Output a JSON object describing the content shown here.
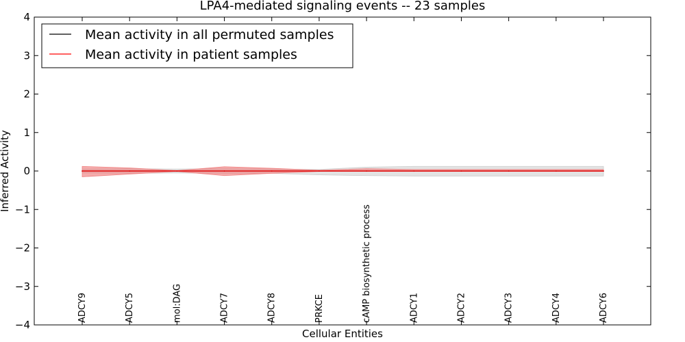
{
  "chart_data": {
    "type": "line",
    "title": "LPA4-mediated signaling events -- 23 samples",
    "xlabel": "Cellular Entities",
    "ylabel": "Inferred Activity",
    "ylim": [
      -4,
      4
    ],
    "yticks": [
      {
        "value": 4,
        "label": "4"
      },
      {
        "value": 3,
        "label": "3"
      },
      {
        "value": 2,
        "label": "2"
      },
      {
        "value": 1,
        "label": "1"
      },
      {
        "value": 0,
        "label": "0"
      },
      {
        "value": -1,
        "label": "−1"
      },
      {
        "value": -2,
        "label": "−2"
      },
      {
        "value": -3,
        "label": "−3"
      },
      {
        "value": -4,
        "label": "−4"
      }
    ],
    "categories": [
      "ADCY9",
      "ADCY5",
      "mol:DAG",
      "ADCY7",
      "ADCY8",
      "PRKCE",
      "cAMP biosynthetic process",
      "ADCY1",
      "ADCY2",
      "ADCY3",
      "ADCY4",
      "ADCY6"
    ],
    "series": [
      {
        "name": "Mean activity in all permuted samples",
        "color": "#000000",
        "values": [
          0,
          0,
          0,
          0,
          0,
          0,
          0,
          0,
          0,
          0,
          0,
          0
        ],
        "band_upper": [
          0.05,
          0.06,
          0.05,
          0.06,
          0.05,
          0.04,
          0.1,
          0.12,
          0.12,
          0.12,
          0.12,
          0.12
        ],
        "band_lower": [
          -0.05,
          -0.06,
          -0.05,
          -0.06,
          -0.06,
          -0.1,
          -0.12,
          -0.13,
          -0.13,
          -0.13,
          -0.13,
          -0.13
        ],
        "band_color": "#cccccc"
      },
      {
        "name": "Mean activity in patient samples",
        "color": "#ff0000",
        "values": [
          0,
          0,
          0,
          0,
          0,
          0,
          0,
          0,
          0,
          0,
          0,
          0
        ],
        "band_upper": [
          0.12,
          0.08,
          0.01,
          0.11,
          0.07,
          0.02,
          0.06,
          0.04,
          0.04,
          0.04,
          0.04,
          0.04
        ],
        "band_lower": [
          -0.15,
          -0.08,
          -0.01,
          -0.12,
          -0.06,
          -0.01,
          -0.01,
          -0.01,
          -0.01,
          -0.01,
          -0.01,
          -0.01
        ],
        "band_color": "#f08080"
      }
    ],
    "legend_position": "top-left"
  }
}
